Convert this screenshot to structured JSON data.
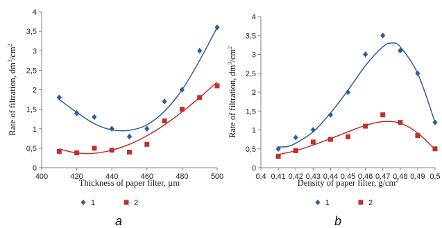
{
  "colors": {
    "series1": "#2e5d99",
    "series2": "#c0302b",
    "axis": "#7f7f7f"
  },
  "chart_data": [
    {
      "type": "scatter",
      "panel_label": "a",
      "xlabel": "Thickness of paper filter, µm",
      "ylabel_main": "Rate of filtration,  dm",
      "ylabel_exp1": "3",
      "ylabel_mid": "/cm",
      "ylabel_exp2": "2",
      "xlim": [
        400,
        500
      ],
      "ylim": [
        0,
        4
      ],
      "x_ticks": [
        "400",
        "420",
        "440",
        "460",
        "480",
        "500"
      ],
      "x_tick_values": [
        400,
        420,
        440,
        460,
        480,
        500
      ],
      "y_ticks": [
        "0",
        "0,5",
        "1",
        "1,5",
        "2",
        "2,5",
        "3",
        "3,5",
        "4"
      ],
      "y_tick_values": [
        0,
        0.5,
        1,
        1.5,
        2,
        2.5,
        3,
        3.5,
        4
      ],
      "grid": false,
      "legend": "bottom-center",
      "series": [
        {
          "name": "1",
          "marker": "diamond",
          "color_key": "series1",
          "x": [
            410,
            420,
            430,
            440,
            450,
            460,
            470,
            480,
            490,
            500
          ],
          "y": [
            1.8,
            1.4,
            1.3,
            1.0,
            0.8,
            1.0,
            1.7,
            2.0,
            3.0,
            3.6
          ],
          "trend": [
            [
              410,
              1.75
            ],
            [
              420,
              1.42
            ],
            [
              430,
              1.13
            ],
            [
              440,
              0.97
            ],
            [
              450,
              0.96
            ],
            [
              460,
              1.1
            ],
            [
              470,
              1.45
            ],
            [
              480,
              2.0
            ],
            [
              490,
              2.75
            ],
            [
              500,
              3.6
            ]
          ]
        },
        {
          "name": "2",
          "marker": "square",
          "color_key": "series2",
          "x": [
            410,
            420,
            430,
            440,
            450,
            460,
            470,
            480,
            490,
            500
          ],
          "y": [
            0.42,
            0.38,
            0.5,
            0.45,
            0.4,
            0.6,
            1.2,
            1.5,
            1.8,
            2.1
          ],
          "trend": [
            [
              410,
              0.48
            ],
            [
              420,
              0.38
            ],
            [
              430,
              0.37
            ],
            [
              440,
              0.45
            ],
            [
              450,
              0.6
            ],
            [
              460,
              0.82
            ],
            [
              470,
              1.1
            ],
            [
              480,
              1.43
            ],
            [
              490,
              1.8
            ],
            [
              500,
              2.2
            ]
          ]
        }
      ]
    },
    {
      "type": "scatter",
      "panel_label": "b",
      "xlabel": "Density of paper filter, g/cm",
      "xlabel_exp": "2",
      "ylabel_main": "Rate of filtration,  dm",
      "ylabel_exp1": "3",
      "ylabel_mid": "/cm",
      "ylabel_exp2": "2",
      "xlim": [
        0.4,
        0.5
      ],
      "ylim": [
        0,
        4
      ],
      "x_ticks": [
        "0,4",
        "0,41",
        "0,42",
        "0,43",
        "0,44",
        "0,45",
        "0,46",
        "0,47",
        "0,48",
        "0,49",
        "0,5"
      ],
      "x_tick_values": [
        0.4,
        0.41,
        0.42,
        0.43,
        0.44,
        0.45,
        0.46,
        0.47,
        0.48,
        0.49,
        0.5
      ],
      "y_ticks": [
        "0",
        "0,5",
        "1",
        "1,5",
        "2",
        "2,5",
        "3",
        "3,5",
        "4"
      ],
      "y_tick_values": [
        0,
        0.5,
        1,
        1.5,
        2,
        2.5,
        3,
        3.5,
        4
      ],
      "grid": false,
      "legend": "bottom-center",
      "series": [
        {
          "name": "1",
          "marker": "diamond",
          "color_key": "series1",
          "x": [
            0.41,
            0.42,
            0.43,
            0.44,
            0.45,
            0.46,
            0.47,
            0.48,
            0.49,
            0.5
          ],
          "y": [
            0.5,
            0.8,
            1.0,
            1.4,
            2.0,
            3.0,
            3.5,
            3.1,
            2.5,
            1.2
          ],
          "trend": [
            [
              0.41,
              0.55
            ],
            [
              0.415,
              0.56
            ],
            [
              0.42,
              0.65
            ],
            [
              0.43,
              0.95
            ],
            [
              0.44,
              1.45
            ],
            [
              0.45,
              2.05
            ],
            [
              0.46,
              2.7
            ],
            [
              0.47,
              3.2
            ],
            [
              0.475,
              3.3
            ],
            [
              0.48,
              3.2
            ],
            [
              0.49,
              2.5
            ],
            [
              0.5,
              1.2
            ]
          ]
        },
        {
          "name": "2",
          "marker": "square",
          "color_key": "series2",
          "x": [
            0.41,
            0.42,
            0.43,
            0.44,
            0.45,
            0.46,
            0.47,
            0.48,
            0.49,
            0.5
          ],
          "y": [
            0.3,
            0.45,
            0.68,
            0.75,
            0.82,
            1.1,
            1.4,
            1.2,
            0.85,
            0.5
          ],
          "trend": [
            [
              0.41,
              0.35
            ],
            [
              0.42,
              0.45
            ],
            [
              0.43,
              0.6
            ],
            [
              0.44,
              0.77
            ],
            [
              0.45,
              0.95
            ],
            [
              0.46,
              1.12
            ],
            [
              0.47,
              1.22
            ],
            [
              0.48,
              1.18
            ],
            [
              0.49,
              0.92
            ],
            [
              0.5,
              0.48
            ]
          ]
        }
      ]
    }
  ]
}
